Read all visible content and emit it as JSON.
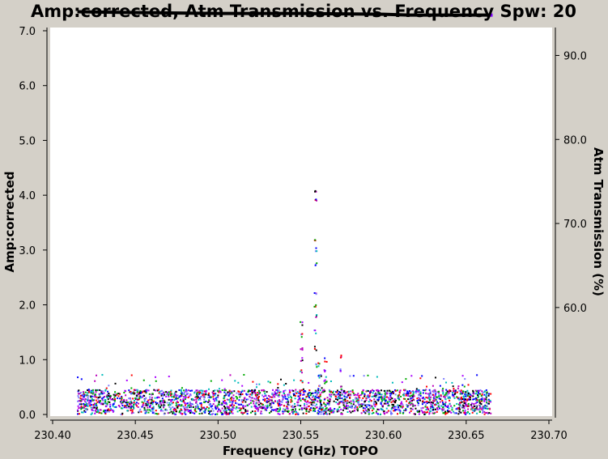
{
  "chart_data": {
    "type": "scatter",
    "title": "Amp:corrected, Atm Transmission vs. Frequency Spw: 20",
    "xlabel": "Frequency (GHz) TOPO",
    "ylabel": "Amp:corrected",
    "y2label": "Atm Transmission (%)",
    "xlim": [
      230.4,
      230.7
    ],
    "ylim": [
      0.0,
      7.0
    ],
    "y2lim": [
      51.0,
      96.5
    ],
    "x_ticks": [
      "230.40",
      "230.45",
      "230.50",
      "230.55",
      "230.60",
      "230.65",
      "230.70"
    ],
    "x_tick_values": [
      230.4,
      230.45,
      230.5,
      230.55,
      230.6,
      230.65,
      230.7
    ],
    "y_ticks": [
      "0.0",
      "1.0",
      "2.0",
      "3.0",
      "4.0",
      "5.0",
      "6.0",
      "7.0"
    ],
    "y_tick_values": [
      0,
      1,
      2,
      3,
      4,
      5,
      6,
      7
    ],
    "y2_ticks": [
      "60.0",
      "70.0",
      "80.0",
      "90.0"
    ],
    "y2_tick_values": [
      60,
      70,
      80,
      90
    ],
    "grid": false,
    "point_colors": [
      "#0000ff",
      "#00aa00",
      "#ff0000",
      "#00bbbb",
      "#bb00bb",
      "#000000",
      "#8080ff",
      "#aa00ff"
    ],
    "series": [
      {
        "type": "line",
        "axis": "y2",
        "color": "#000000",
        "x": [
          230.415,
          230.45,
          230.5,
          230.55,
          230.6,
          230.615,
          230.665
        ],
        "values": [
          95.2,
          95.1,
          95.0,
          95.0,
          94.9,
          94.8,
          94.8
        ]
      },
      {
        "type": "scatter",
        "axis": "y",
        "color": "#0000ff",
        "x_range": [
          230.415,
          230.665
        ],
        "noise_floor_max": 0.45,
        "spikes": [
          {
            "x": 230.5505,
            "values": [
              0.6,
              0.8,
              1.0,
              1.2,
              1.45,
              1.65
            ]
          },
          {
            "x": 230.559,
            "values": [
              0.9,
              1.2,
              1.5,
              1.8,
              2.0,
              2.2,
              2.75,
              3.0,
              3.2,
              3.9,
              4.1
            ]
          },
          {
            "x": 230.561,
            "values": [
              0.5,
              0.7,
              0.9
            ]
          },
          {
            "x": 230.565,
            "values": [
              0.6,
              0.8,
              1.0
            ]
          },
          {
            "x": 230.574,
            "values": [
              0.5,
              0.8,
              1.05
            ]
          }
        ]
      }
    ]
  }
}
